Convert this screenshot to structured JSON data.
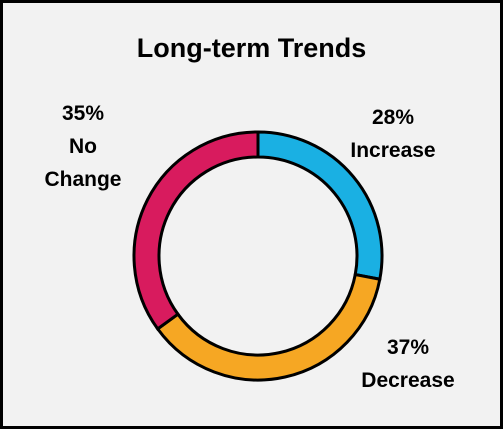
{
  "chart_data": {
    "type": "donut",
    "title": "Long-term Trends",
    "categories": [
      "Increase",
      "Decrease",
      "No Change"
    ],
    "values": [
      28,
      37,
      35
    ],
    "value_labels": [
      "28%",
      "37%",
      "35%"
    ],
    "colors": [
      "#1ab0e3",
      "#f6a723",
      "#d81b5e"
    ]
  }
}
